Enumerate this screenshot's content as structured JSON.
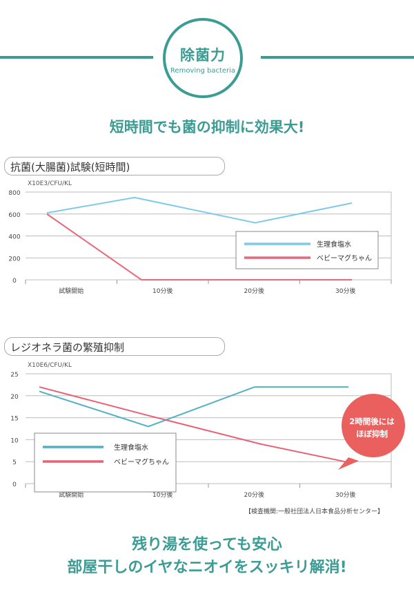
{
  "header": {
    "badge_title": "除菌力",
    "badge_subtitle": "Removing bacteria",
    "headline": "短時間でも菌の抑制に効果大!"
  },
  "colors": {
    "teal": "#3b9c94",
    "blue": "#7ecbe9",
    "red": "#e8677a",
    "bubble": "#e9605f"
  },
  "chart_data": [
    {
      "type": "line",
      "title": "抗菌(大腸菌)試験(短時間)",
      "ylabel": "X10E3/CFU/KL",
      "ylim": [
        0,
        800
      ],
      "yticks": [
        0,
        200,
        400,
        600,
        800
      ],
      "grid": true,
      "legend": "right",
      "categories": [
        "試験開始",
        "10分後",
        "20分後",
        "30分後"
      ],
      "series": [
        {
          "name": "生理食塩水",
          "color": "#7ecbe9",
          "values": [
            610,
            750,
            520,
            700
          ]
        },
        {
          "name": "ベビーマグちゃん",
          "color": "#e8677a",
          "values": [
            600,
            0,
            0,
            0
          ]
        }
      ]
    },
    {
      "type": "line",
      "title": "レジオネラ菌の繁殖抑制",
      "ylabel": "X10E6/CFU/KL",
      "ylim": [
        0,
        25
      ],
      "yticks": [
        0,
        5,
        10,
        15,
        20,
        25
      ],
      "grid": true,
      "legend": "bottom-left",
      "categories": [
        "試験開始",
        "10分後",
        "20分後",
        "30分後"
      ],
      "series": [
        {
          "name": "生理食塩水",
          "color": "#4fb0c6",
          "values": [
            21,
            13,
            22,
            22
          ]
        },
        {
          "name": "ベビーマグちゃん",
          "color": "#ea5f74",
          "values": [
            22,
            15.5,
            9,
            5
          ]
        }
      ],
      "annotation": [
        "2時間後には",
        "ほぼ抑制"
      ]
    }
  ],
  "source_note": "【検査機関:一般社団法人日本食品分析センター】",
  "footer": {
    "line1": "残り湯を使っても安心",
    "line2": "部屋干しのイヤなニオイをスッキリ解消!"
  }
}
